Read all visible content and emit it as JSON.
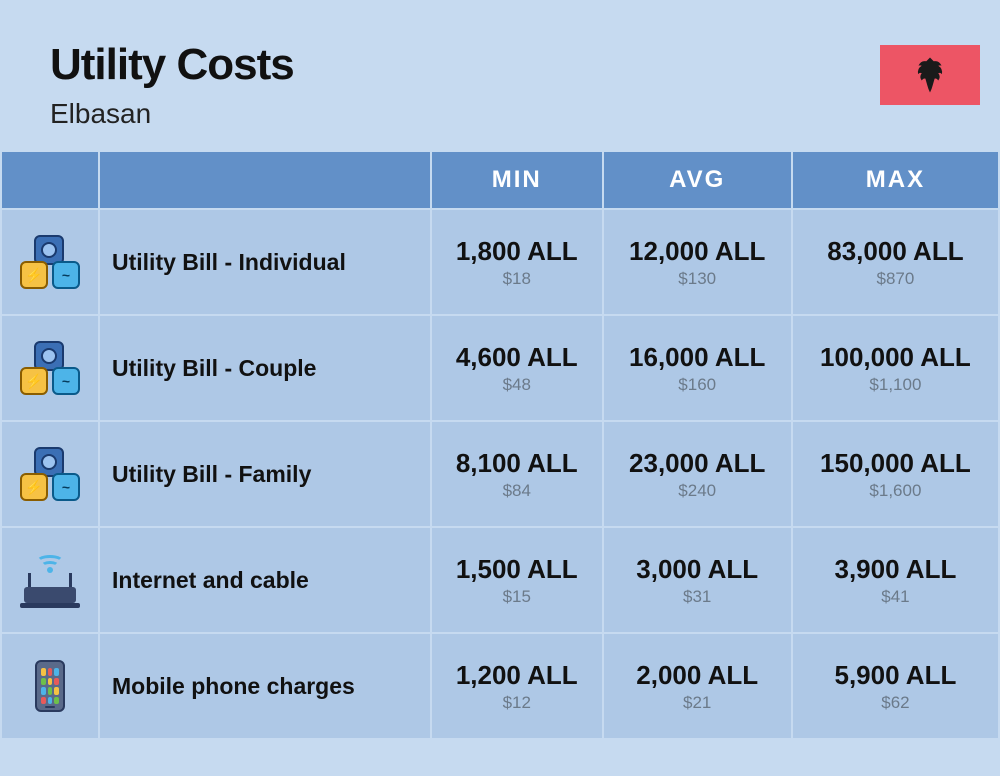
{
  "header": {
    "title": "Utility Costs",
    "subtitle": "Elbasan",
    "flag_bg": "#ed5565",
    "flag_emblem_color": "#1a1a1a"
  },
  "columns": {
    "min": "MIN",
    "avg": "AVG",
    "max": "MAX"
  },
  "colors": {
    "page_bg": "#c6daf0",
    "header_cell_bg": "#6290c8",
    "header_cell_text": "#ffffff",
    "row_cell_bg": "#aec8e6",
    "primary_text": "#111111",
    "secondary_text": "#6b7a8a"
  },
  "typography": {
    "title_fontsize": 44,
    "title_weight": 800,
    "subtitle_fontsize": 28,
    "column_header_fontsize": 24,
    "row_label_fontsize": 23,
    "primary_value_fontsize": 26,
    "secondary_value_fontsize": 17
  },
  "rows": [
    {
      "icon": "utility-cluster",
      "label": "Utility Bill - Individual",
      "min": {
        "primary": "1,800 ALL",
        "secondary": "$18"
      },
      "avg": {
        "primary": "12,000 ALL",
        "secondary": "$130"
      },
      "max": {
        "primary": "83,000 ALL",
        "secondary": "$870"
      }
    },
    {
      "icon": "utility-cluster",
      "label": "Utility Bill - Couple",
      "min": {
        "primary": "4,600 ALL",
        "secondary": "$48"
      },
      "avg": {
        "primary": "16,000 ALL",
        "secondary": "$160"
      },
      "max": {
        "primary": "100,000 ALL",
        "secondary": "$1,100"
      }
    },
    {
      "icon": "utility-cluster",
      "label": "Utility Bill - Family",
      "min": {
        "primary": "8,100 ALL",
        "secondary": "$84"
      },
      "avg": {
        "primary": "23,000 ALL",
        "secondary": "$240"
      },
      "max": {
        "primary": "150,000 ALL",
        "secondary": "$1,600"
      }
    },
    {
      "icon": "router",
      "label": "Internet and cable",
      "min": {
        "primary": "1,500 ALL",
        "secondary": "$15"
      },
      "avg": {
        "primary": "3,000 ALL",
        "secondary": "$31"
      },
      "max": {
        "primary": "3,900 ALL",
        "secondary": "$41"
      }
    },
    {
      "icon": "phone",
      "label": "Mobile phone charges",
      "min": {
        "primary": "1,200 ALL",
        "secondary": "$12"
      },
      "avg": {
        "primary": "2,000 ALL",
        "secondary": "$21"
      },
      "max": {
        "primary": "5,900 ALL",
        "secondary": "$62"
      }
    }
  ]
}
